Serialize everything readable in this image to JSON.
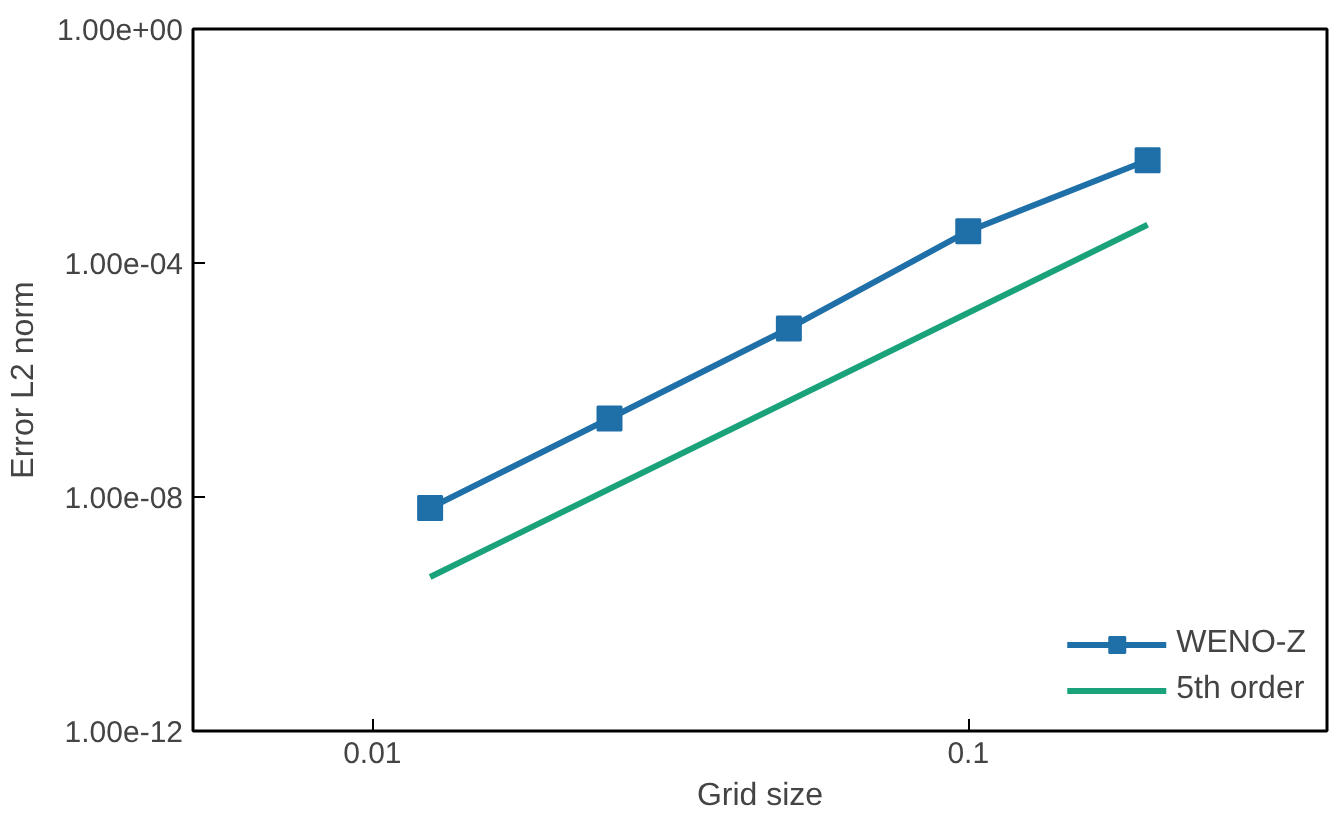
{
  "chart_data": {
    "type": "line",
    "xlabel": "Grid size",
    "ylabel": "Error L2 norm",
    "log": "xy",
    "grid": false,
    "legend": "bottom right",
    "xlim": [
      0.005,
      0.4
    ],
    "ylim": [
      1e-12,
      1
    ],
    "xticks": [
      0.01,
      0.1
    ],
    "yticks": [
      {
        "value": 1e-12,
        "label": "1.00e-12"
      },
      {
        "value": 1e-08,
        "label": "1.00e-08"
      },
      {
        "value": 0.0001,
        "label": "1.00e-04"
      },
      {
        "value": 1,
        "label": "1.00e+00"
      }
    ],
    "series": [
      {
        "name": "WENO-Z",
        "color": "#1f6fa8",
        "marker": "square",
        "x": [
          0.0125,
          0.025,
          0.05,
          0.1,
          0.2
        ],
        "values": [
          6.5e-09,
          2.2e-07,
          7.6e-06,
          0.00035,
          0.0057
        ]
      },
      {
        "name": "5th order",
        "color": "#1aa37a",
        "marker": "none",
        "x": [
          0.0125,
          0.2
        ],
        "values": [
          4.3e-10,
          0.00045
        ]
      }
    ]
  }
}
